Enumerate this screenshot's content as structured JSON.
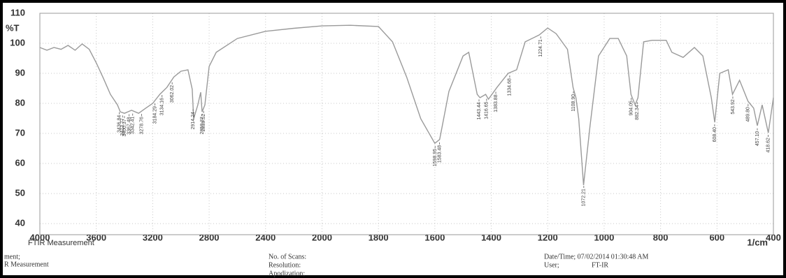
{
  "chart_data": {
    "type": "line",
    "y_label": "%T",
    "x_unit": "1/cm",
    "subtitle": "FTIR Measurement",
    "footer": {
      "comment": "ment;",
      "measurement": "R Measurement",
      "scans": "No. of Scans:",
      "resolution": "Resolution:",
      "apodization": "Apodization;",
      "datetime": "Date/Time; 07/02/2014 01:30:48 AM",
      "user": "User;",
      "user_value": "FT-IR"
    },
    "xlim": [
      4000,
      400
    ],
    "ylim": [
      36.3,
      110
    ],
    "xticks": [
      4000,
      3600,
      3200,
      2800,
      2400,
      2000,
      1800,
      1600,
      1400,
      1200,
      1000,
      800,
      600,
      400
    ],
    "yticks": [
      110,
      100,
      90,
      80,
      70,
      60,
      50,
      40
    ],
    "grid": true,
    "color": "#9a9a9a",
    "x": [
      4000,
      3950,
      3900,
      3850,
      3800,
      3750,
      3700,
      3650,
      3600,
      3550,
      3500,
      3450,
      3430,
      3400,
      3350,
      3300,
      3250,
      3200,
      3150,
      3100,
      3050,
      3000,
      2950,
      2920,
      2910,
      2880,
      2860,
      2850,
      2830,
      2800,
      2750,
      2600,
      2400,
      2200,
      2000,
      1900,
      1800,
      1750,
      1700,
      1650,
      1600,
      1583,
      1550,
      1500,
      1480,
      1450,
      1440,
      1420,
      1410,
      1380,
      1360,
      1340,
      1310,
      1280,
      1230,
      1200,
      1170,
      1130,
      1110,
      1100,
      1090,
      1073,
      1050,
      1020,
      980,
      950,
      920,
      905,
      890,
      880,
      860,
      830,
      780,
      760,
      720,
      680,
      650,
      620,
      608,
      590,
      560,
      545,
      520,
      490,
      470,
      457,
      440,
      418,
      400
    ],
    "values": [
      98.6,
      97.7,
      98.6,
      98,
      99.3,
      97.7,
      99.8,
      98,
      93.5,
      88.4,
      83,
      79.5,
      77.2,
      76.7,
      77.7,
      76.7,
      78.4,
      80,
      83,
      85.3,
      88.8,
      90.7,
      91.2,
      84.7,
      74.9,
      79.5,
      83.7,
      77.2,
      79.5,
      92.3,
      97,
      101.6,
      104,
      105,
      105.8,
      106,
      105.6,
      100.5,
      88.8,
      74.9,
      66.7,
      68,
      84,
      95.8,
      97,
      83,
      81.9,
      83,
      81.4,
      85.3,
      87.7,
      90,
      91.2,
      100.5,
      102.8,
      105.1,
      103.2,
      98,
      85.3,
      81.9,
      74.9,
      52.8,
      72.6,
      95.8,
      101.6,
      101.6,
      95.8,
      83,
      79.5,
      81.9,
      100.5,
      101,
      101,
      97,
      95.3,
      98.6,
      95.8,
      81.9,
      73.7,
      90,
      91.2,
      83,
      87.7,
      80.7,
      78.4,
      72.6,
      79.5,
      70.2,
      81.9
    ],
    "peak_labels": [
      3436.84,
      3413.77,
      3400.37,
      3367.48,
      3342.41,
      3278.76,
      3184.29,
      3134.16,
      3062.02,
      2914.24,
      2850.37,
      2839.52,
      1598.95,
      1583.48,
      1443.44,
      1416.65,
      1383.88,
      1334.68,
      1224.71,
      {
        "value": 1108.9,
        "label": "1108.90"
      },
      1072.21,
      904.05,
      882.34,
      {
        "value": 608.4,
        "label": "608.40"
      },
      543.92,
      {
        "value": 489.8,
        "label": "489.80"
      },
      {
        "value": 457.1,
        "label": "457.10"
      },
      418.62
    ]
  }
}
